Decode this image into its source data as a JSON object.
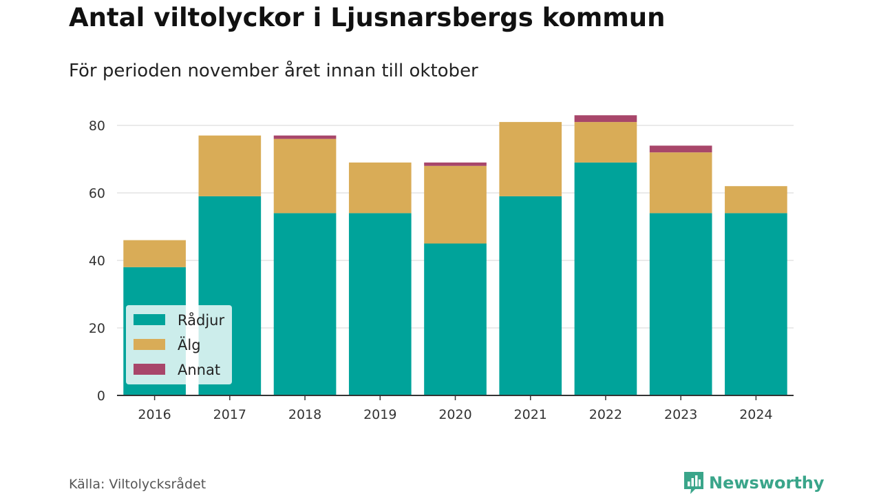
{
  "header": {
    "title": "Antal viltolyckor i Ljusnarsbergs kommun",
    "subtitle": "För perioden november året innan till oktober"
  },
  "footer": {
    "source": "Källa: Viltolycksrådet",
    "brand": "Newsworthy"
  },
  "chart_data": {
    "type": "bar",
    "stacked": true,
    "categories": [
      "2016",
      "2017",
      "2018",
      "2019",
      "2020",
      "2021",
      "2022",
      "2023",
      "2024"
    ],
    "series": [
      {
        "name": "Rådjur",
        "color": "#00a39a",
        "values": [
          38,
          59,
          54,
          54,
          45,
          59,
          69,
          54,
          54
        ]
      },
      {
        "name": "Älg",
        "color": "#d9ac57",
        "values": [
          8,
          18,
          22,
          15,
          23,
          22,
          12,
          18,
          8
        ]
      },
      {
        "name": "Annat",
        "color": "#a8466a",
        "values": [
          0,
          0,
          1,
          0,
          1,
          0,
          2,
          2,
          0
        ]
      }
    ],
    "yticks": [
      "0",
      "20",
      "40",
      "60",
      "80"
    ],
    "ylim": [
      0,
      90
    ],
    "xlabel": "",
    "ylabel": "",
    "grid": true,
    "legend_position": "bottom-left"
  }
}
